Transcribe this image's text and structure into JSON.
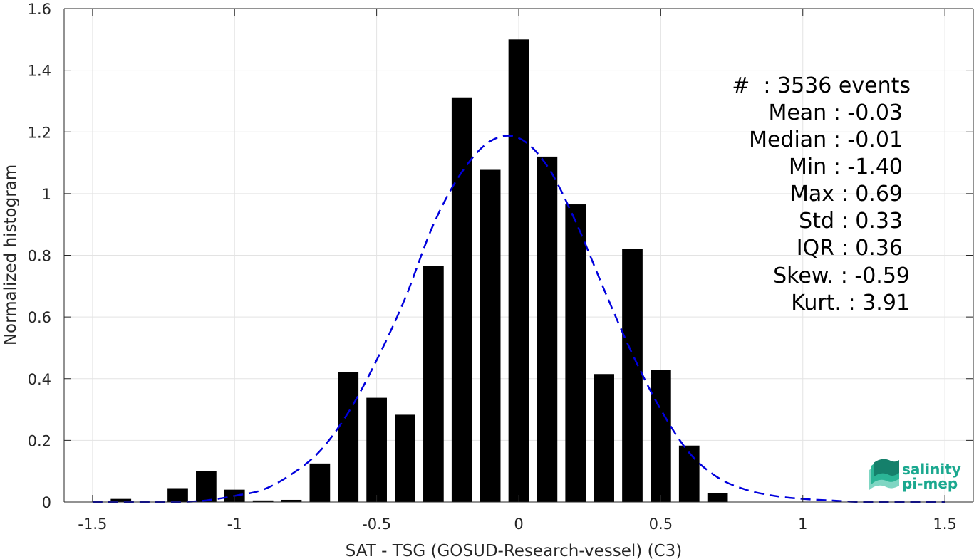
{
  "chart_data": {
    "type": "bar",
    "xlabel": "SAT - TSG (GOSUD-Research-vessel) (C3)",
    "ylabel": "Normalized histogram",
    "xlim": [
      -1.6,
      1.6
    ],
    "ylim": [
      0,
      1.6
    ],
    "xticks": [
      -1.5,
      -1,
      -0.5,
      0,
      0.5,
      1,
      1.5
    ],
    "xtick_labels": [
      "-1.5",
      "-1",
      "-0.5",
      "0",
      "0.5",
      "1",
      "1.5"
    ],
    "yticks": [
      0,
      0.2,
      0.4,
      0.6,
      0.8,
      1,
      1.2,
      1.4,
      1.6
    ],
    "ytick_labels": [
      "0",
      "0.2",
      "0.4",
      "0.6",
      "0.8",
      "1",
      "1.2",
      "1.4",
      "1.6"
    ],
    "grid": true,
    "bin_width": 0.1,
    "bars": {
      "x": [
        -1.4,
        -1.3,
        -1.2,
        -1.1,
        -1.0,
        -0.9,
        -0.8,
        -0.7,
        -0.6,
        -0.5,
        -0.4,
        -0.3,
        -0.2,
        -0.1,
        0.0,
        0.1,
        0.2,
        0.3,
        0.4,
        0.5,
        0.6,
        0.7
      ],
      "values": [
        0.01,
        0.0,
        0.045,
        0.1,
        0.04,
        0.005,
        0.007,
        0.125,
        0.422,
        0.338,
        0.283,
        0.765,
        1.312,
        1.077,
        1.5,
        1.12,
        0.965,
        0.415,
        0.82,
        0.428,
        0.183,
        0.03
      ],
      "color": "#000000"
    },
    "fit_curve": {
      "style": "dashed",
      "color": "#0000dd",
      "x": [
        -1.5,
        -1.4,
        -1.3,
        -1.2,
        -1.1,
        -1.0,
        -0.9,
        -0.8,
        -0.7,
        -0.6,
        -0.5,
        -0.4,
        -0.3,
        -0.2,
        -0.1,
        0.0,
        0.1,
        0.2,
        0.3,
        0.4,
        0.5,
        0.6,
        0.7,
        0.8,
        0.9,
        1.0,
        1.1,
        1.2,
        1.3,
        1.4,
        1.5
      ],
      "y": [
        0.0,
        0.0,
        0.0,
        0.0,
        0.005,
        0.02,
        0.04,
        0.09,
        0.165,
        0.29,
        0.46,
        0.66,
        0.9,
        1.07,
        1.17,
        1.18,
        1.09,
        0.91,
        0.69,
        0.48,
        0.3,
        0.16,
        0.08,
        0.04,
        0.02,
        0.01,
        0.005,
        0.0,
        0.0,
        0.0,
        0.0
      ]
    },
    "annotations": [
      "#  : 3536 events",
      "Mean : -0.03",
      "Median : -0.01",
      "Min : -1.40",
      "Max : 0.69",
      "Std : 0.33",
      "IQR : 0.36",
      "Skew. : -0.59",
      "Kurt. : 3.91"
    ],
    "logo": {
      "line1": "salinity",
      "line2": "pi-mep"
    }
  }
}
